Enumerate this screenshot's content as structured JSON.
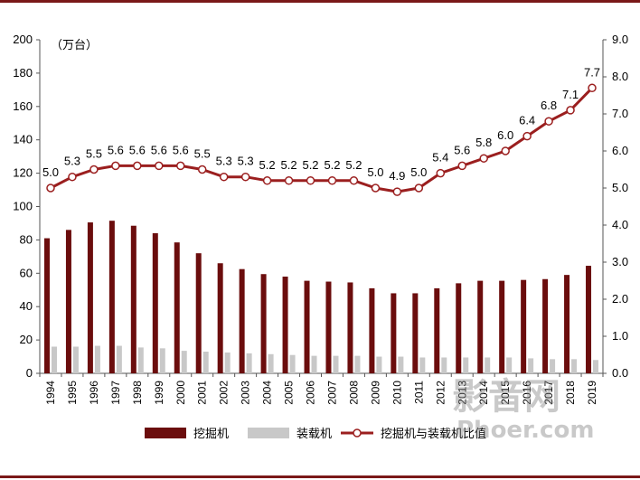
{
  "chart_data": {
    "type": "bar+line",
    "unit_label": "（万台）",
    "categories": [
      "1994",
      "1995",
      "1996",
      "1997",
      "1998",
      "1999",
      "2000",
      "2001",
      "2002",
      "2003",
      "2004",
      "2005",
      "2006",
      "2007",
      "2008",
      "2009",
      "2010",
      "2011",
      "2012",
      "2013",
      "2014",
      "2015",
      "2016",
      "2017",
      "2018",
      "2019"
    ],
    "series": [
      {
        "name": "挖掘机",
        "axis": "left",
        "kind": "bar",
        "color": "#6b0d0d",
        "values": [
          81,
          86,
          90.5,
          91.5,
          88.5,
          84,
          78.5,
          72,
          66,
          62.5,
          59.5,
          58,
          55.5,
          55,
          54.5,
          51,
          48,
          48,
          51,
          54,
          55.5,
          55.5,
          56,
          56.5,
          59,
          64.5
        ]
      },
      {
        "name": "装载机",
        "axis": "left",
        "kind": "bar",
        "color": "#c8c8c8",
        "values": [
          16,
          16,
          16.5,
          16.5,
          15.5,
          15,
          13.5,
          13,
          12.5,
          12,
          11.5,
          11,
          10.5,
          10.5,
          10.5,
          10,
          10,
          9.5,
          9.5,
          9.5,
          9.5,
          9.5,
          9,
          8.5,
          8.5,
          8
        ]
      },
      {
        "name": "挖掘机与装载机比值",
        "axis": "right",
        "kind": "line",
        "color": "#9b1f1f",
        "values": [
          5.0,
          5.3,
          5.5,
          5.6,
          5.6,
          5.6,
          5.6,
          5.5,
          5.3,
          5.3,
          5.2,
          5.2,
          5.2,
          5.2,
          5.2,
          5.0,
          4.9,
          5.0,
          5.4,
          5.6,
          5.8,
          6.0,
          6.4,
          6.8,
          7.1,
          7.7
        ],
        "labels": [
          "5.0",
          "5.3",
          "5.5",
          "5.6",
          "5.6",
          "5.6",
          "5.6",
          "5.5",
          "5.3",
          "5.3",
          "5.2",
          "5.2",
          "5.2",
          "5.2",
          "5.2",
          "5.0",
          "4.9",
          "5.0",
          "5.4",
          "5.6",
          "5.8",
          "6.0",
          "6.4",
          "6.8",
          "7.1",
          "7.7"
        ]
      }
    ],
    "y_left": {
      "min": 0,
      "max": 200,
      "ticks": [
        "0",
        "20",
        "40",
        "60",
        "80",
        "100",
        "120",
        "140",
        "160",
        "180",
        "200"
      ]
    },
    "y_right": {
      "min": 0,
      "max": 9,
      "ticks": [
        "0.0",
        "1.0",
        "2.0",
        "3.0",
        "4.0",
        "5.0",
        "6.0",
        "7.0",
        "8.0",
        "9.0"
      ]
    },
    "grid": false,
    "legend_position": "bottom"
  },
  "watermark": {
    "line1": "影音网",
    "line2": "Phoer.com"
  }
}
